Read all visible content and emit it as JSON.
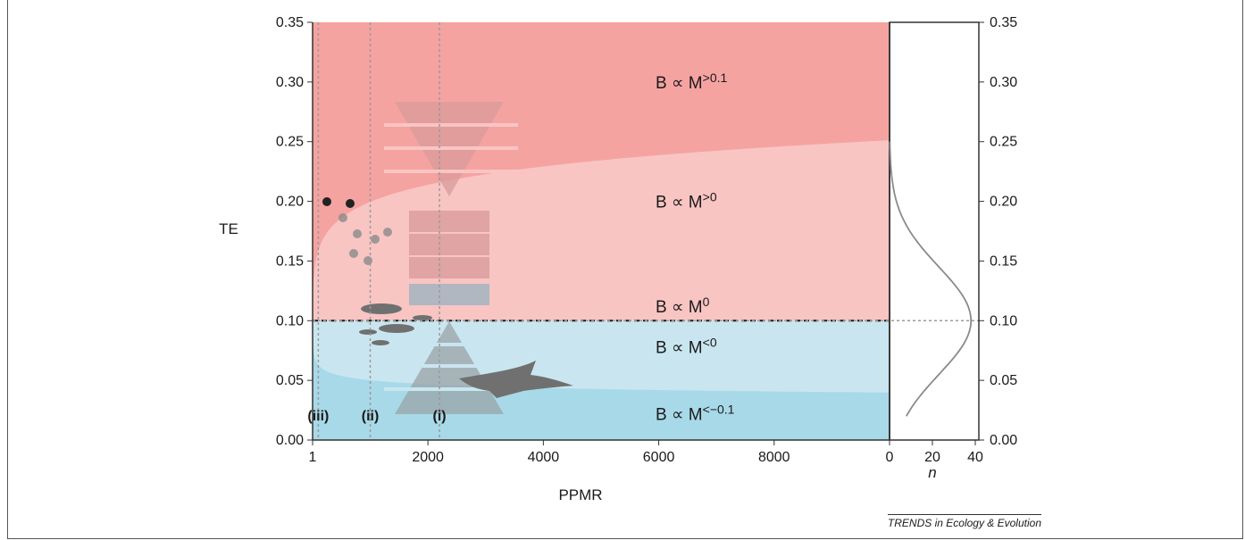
{
  "chart_data": {
    "type": "area",
    "xlabel": "PPMR",
    "ylabel": "TE",
    "xlim": [
      1,
      10000
    ],
    "ylim": [
      0,
      0.35
    ],
    "x_ticks": [
      "1",
      "2000",
      "4000",
      "6000",
      "8000"
    ],
    "y_ticks": [
      "0.00",
      "0.05",
      "0.10",
      "0.15",
      "0.20",
      "0.25",
      "0.30",
      "0.35"
    ],
    "regions": [
      {
        "label": "B ∝ M",
        "exponent": ">0.1",
        "color": "#f5a3a1"
      },
      {
        "label": "B ∝ M",
        "exponent": ">0",
        "color": "#f8c5c3"
      },
      {
        "label": "B ∝ M",
        "exponent": "0",
        "color": "none"
      },
      {
        "label": "B ∝ M",
        "exponent": "<0",
        "color": "#c9e6f0"
      },
      {
        "label": "B ∝ M",
        "exponent": "<−0.1",
        "color": "#a8d9e8"
      }
    ],
    "boundary_exponents": [
      0.1,
      0,
      -0.1
    ],
    "reference_lines": [
      {
        "label": "(iii)",
        "ppmr": 100
      },
      {
        "label": "(ii)",
        "ppmr": 1000
      },
      {
        "label": "(i)",
        "ppmr": 2200
      }
    ],
    "te_reference": 0.1,
    "side_distribution": {
      "xlabel": "n",
      "x_ticks": [
        "0",
        "20",
        "40"
      ],
      "xlim": [
        0,
        40
      ],
      "mode_te": 0.1,
      "sd_te": 0.045,
      "peak_n": 38,
      "te_range": [
        0.02,
        0.25
      ]
    }
  },
  "credit": "TRENDS in Ecology & Evolution"
}
